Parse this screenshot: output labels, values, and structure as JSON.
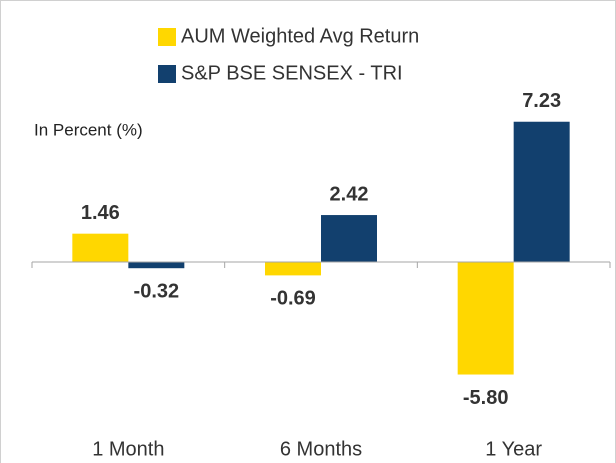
{
  "chart_data": {
    "type": "bar",
    "annotation": "In Percent (%)",
    "categories": [
      "1 Month",
      "6 Months",
      "1 Year"
    ],
    "series": [
      {
        "name": "AUM Weighted Avg Return",
        "color": "#ffd700",
        "values": [
          1.46,
          -0.69,
          -5.8
        ],
        "value_labels": [
          "1.46",
          "-0.69",
          "-5.80"
        ]
      },
      {
        "name": "S&P BSE SENSEX - TRI",
        "color": "#12406e",
        "values": [
          -0.32,
          2.42,
          7.23
        ],
        "value_labels": [
          "-0.32",
          "2.42",
          "7.23"
        ]
      }
    ],
    "ylim": [
      -7,
      8
    ],
    "legend": "top"
  }
}
